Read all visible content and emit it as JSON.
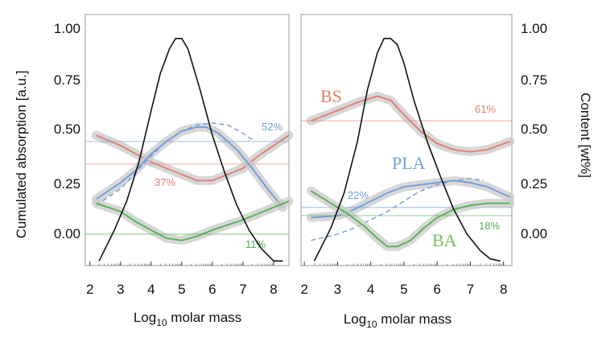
{
  "colors": {
    "red": "#e07a72",
    "blue": "#6f9bdc",
    "green": "#4fb14f",
    "black": "#111111",
    "band": "#c9c9c9",
    "label_red": "#e08060",
    "label_blue": "#6fa3d8",
    "label_green": "#6fbf5f"
  },
  "chart_data": {
    "type": "line",
    "ylabel": "Cumulated absorption [a.u.]",
    "y2label": "Content [wt%]",
    "yticks": [
      "1.00",
      "0.75",
      "0.50",
      "0.25",
      "0.00"
    ],
    "y2ticks": [
      "1.00",
      "0.75",
      "0.50",
      "0.25",
      "0.00"
    ],
    "panels": [
      {
        "xlabel": "Log10 molar mass",
        "xticks": [
          "2",
          "3",
          "4",
          "5",
          "6",
          "7",
          "8"
        ],
        "xlim": [
          1.85,
          8.5
        ],
        "ylim": [
          -0.15,
          1.08
        ],
        "distribution": {
          "x": [
            2.3,
            2.8,
            3.2,
            3.6,
            4.0,
            4.3,
            4.6,
            4.8,
            5.0,
            5.2,
            5.6,
            6.0,
            6.4,
            6.8,
            7.2,
            7.6,
            8.0,
            8.3
          ],
          "y": [
            -0.13,
            0.02,
            0.16,
            0.35,
            0.6,
            0.78,
            0.9,
            0.95,
            0.95,
            0.9,
            0.7,
            0.48,
            0.3,
            0.14,
            0.02,
            -0.07,
            -0.13,
            -0.13
          ]
        },
        "series": [
          {
            "color": "red",
            "x": [
              2.2,
              3,
              4,
              5,
              5.5,
              6,
              7,
              7.5,
              8.5
            ],
            "y": [
              0.48,
              0.43,
              0.35,
              0.29,
              0.26,
              0.26,
              0.32,
              0.38,
              0.48
            ],
            "mean": 0.34,
            "pct": "37%"
          },
          {
            "color": "blue",
            "x": [
              2.2,
              3,
              3.5,
              4,
              4.5,
              5,
              5.5,
              5.8,
              6.2,
              6.8,
              7.3,
              7.8,
              8.3
            ],
            "y": [
              0.17,
              0.25,
              0.31,
              0.39,
              0.45,
              0.5,
              0.52,
              0.52,
              0.49,
              0.41,
              0.32,
              0.22,
              0.13
            ],
            "mean": 0.45,
            "pct": "52%",
            "dashed": {
              "x": [
                2.2,
                3,
                3.5,
                4,
                4.5,
                5,
                5.5,
                6,
                6.5,
                7,
                7.4
              ],
              "y": [
                0.14,
                0.22,
                0.3,
                0.38,
                0.45,
                0.5,
                0.53,
                0.54,
                0.53,
                0.49,
                0.45
              ]
            }
          },
          {
            "color": "green",
            "x": [
              2.2,
              3,
              3.5,
              4,
              4.5,
              5,
              5.5,
              6,
              7,
              7.5,
              8.5
            ],
            "y": [
              0.15,
              0.11,
              0.06,
              0.02,
              -0.02,
              -0.03,
              -0.01,
              0.02,
              0.07,
              0.1,
              0.16
            ],
            "mean": 0.0,
            "pct": "11%"
          }
        ]
      },
      {
        "xlabel": "Log10 molar mass",
        "xticks": [
          "2",
          "3",
          "4",
          "5",
          "6",
          "7",
          "8"
        ],
        "xlim": [
          1.9,
          8.25
        ],
        "ylim": [
          -0.15,
          1.08
        ],
        "distribution": {
          "x": [
            2.3,
            2.8,
            3.2,
            3.6,
            3.9,
            4.2,
            4.4,
            4.6,
            4.8,
            5.0,
            5.3,
            5.7,
            6.1,
            6.5,
            6.9,
            7.3,
            7.6,
            7.9
          ],
          "y": [
            -0.13,
            0.03,
            0.2,
            0.45,
            0.7,
            0.88,
            0.95,
            0.95,
            0.92,
            0.83,
            0.65,
            0.45,
            0.28,
            0.12,
            0.0,
            -0.08,
            -0.12,
            -0.13
          ]
        },
        "series": [
          {
            "color": "red",
            "x": [
              2.2,
              3,
              3.6,
              4.2,
              4.6,
              5,
              5.5,
              6,
              6.5,
              7,
              7.5,
              8.2
            ],
            "y": [
              0.55,
              0.6,
              0.64,
              0.67,
              0.65,
              0.58,
              0.5,
              0.44,
              0.41,
              0.4,
              0.41,
              0.45
            ],
            "mean": 0.55,
            "pct": "61%"
          },
          {
            "color": "blue",
            "x": [
              2.2,
              3,
              3.5,
              4,
              4.5,
              5,
              5.5,
              6,
              6.5,
              7,
              7.5,
              8.2
            ],
            "y": [
              0.08,
              0.09,
              0.12,
              0.16,
              0.2,
              0.23,
              0.24,
              0.25,
              0.26,
              0.25,
              0.23,
              0.18
            ],
            "mean": 0.13,
            "pct": "22%",
            "dashed": {
              "x": [
                2.2,
                3,
                3.5,
                4,
                4.5,
                5,
                5.5,
                6,
                6.5,
                7,
                7.4
              ],
              "y": [
                -0.03,
                0.0,
                0.03,
                0.07,
                0.11,
                0.16,
                0.21,
                0.24,
                0.26,
                0.27,
                0.26
              ]
            }
          },
          {
            "color": "green",
            "x": [
              2.2,
              2.8,
              3.3,
              3.8,
              4.2,
              4.5,
              4.8,
              5.2,
              5.6,
              6,
              6.5,
              7,
              7.5,
              8.2
            ],
            "y": [
              0.21,
              0.15,
              0.1,
              0.04,
              -0.02,
              -0.06,
              -0.06,
              -0.03,
              0.03,
              0.08,
              0.12,
              0.14,
              0.15,
              0.15
            ],
            "mean": 0.09,
            "pct": "18%"
          }
        ],
        "labels": {
          "bs": "BS",
          "pla": "PLA",
          "ba": "BA"
        }
      }
    ]
  }
}
